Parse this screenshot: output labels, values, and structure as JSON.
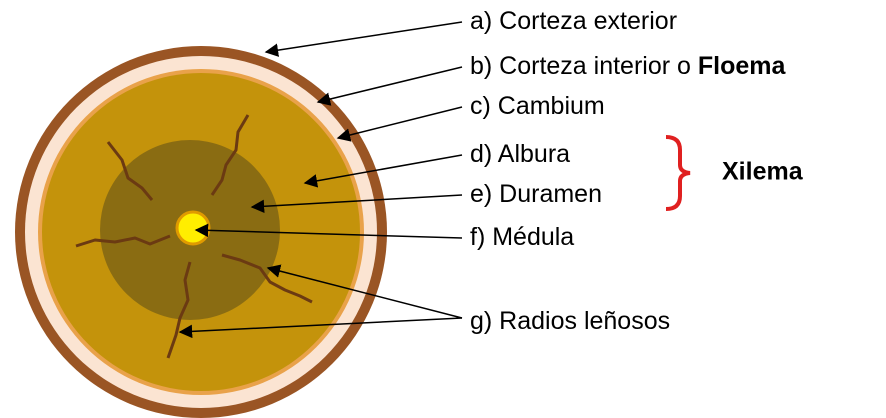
{
  "title_labels": [
    {
      "text": "a) Corteza exterior"
    },
    {
      "text": "b) Corteza interior o ",
      "bold": "Floema"
    },
    {
      "text": "c) Cambium"
    },
    {
      "text": "d) Albura"
    },
    {
      "text": "e) Duramen"
    },
    {
      "text": "f) Médula"
    },
    {
      "text": "g) Radios leñosos"
    }
  ],
  "group": {
    "label": "Xilema"
  }
}
